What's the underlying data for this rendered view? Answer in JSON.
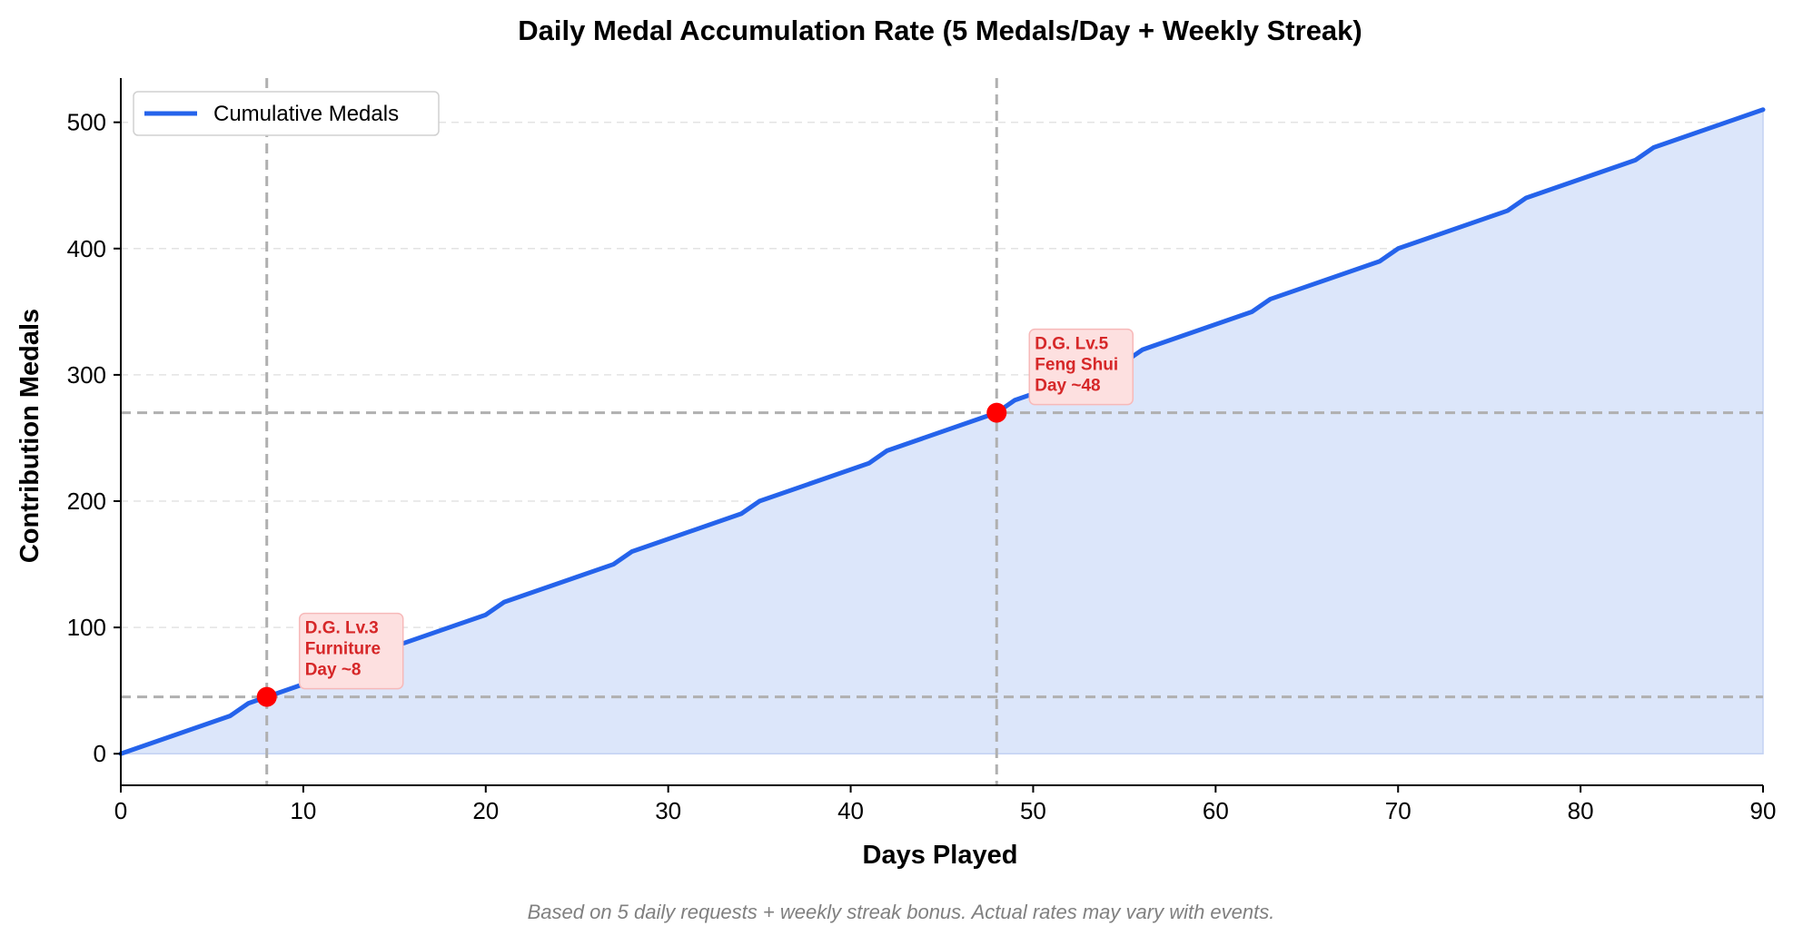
{
  "chart_data": {
    "type": "area",
    "title": "Daily Medal Accumulation Rate (5 Medals/Day + Weekly Streak)",
    "xlabel": "Days Played",
    "ylabel": "Contribution Medals",
    "xlim": [
      0,
      90
    ],
    "ylim": [
      -25,
      535
    ],
    "xticks": [
      0,
      10,
      20,
      30,
      40,
      50,
      60,
      70,
      80,
      90
    ],
    "yticks": [
      0,
      100,
      200,
      300,
      400,
      500
    ],
    "grid": "horizontal dashed",
    "legend": {
      "placement": "upper-left",
      "entries": [
        "Cumulative Medals"
      ]
    },
    "series": [
      {
        "name": "Cumulative Medals",
        "color": "#2563eb",
        "fill_color": "#dce6fa",
        "x": [
          0,
          6,
          7,
          13,
          14,
          20,
          21,
          27,
          28,
          34,
          35,
          41,
          42,
          48,
          49,
          55,
          56,
          62,
          63,
          69,
          70,
          76,
          77,
          83,
          84,
          90
        ],
        "y": [
          0,
          30,
          40,
          70,
          80,
          110,
          120,
          150,
          160,
          190,
          200,
          230,
          240,
          270,
          280,
          310,
          320,
          350,
          360,
          390,
          400,
          430,
          440,
          470,
          480,
          510
        ]
      }
    ],
    "markers": [
      {
        "x": 8,
        "y": 45,
        "color": "#ff0000",
        "label_lines": [
          "D.G. Lv.3",
          "Furniture",
          "Day ~8"
        ]
      },
      {
        "x": 48,
        "y": 270,
        "color": "#ff0000",
        "label_lines": [
          "D.G. Lv.5",
          "Feng Shui",
          "Day ~48"
        ]
      }
    ],
    "reference_lines_color": "#b0b0b0",
    "footnote": "Based on 5 daily requests + weekly streak bonus. Actual rates may vary with events."
  }
}
